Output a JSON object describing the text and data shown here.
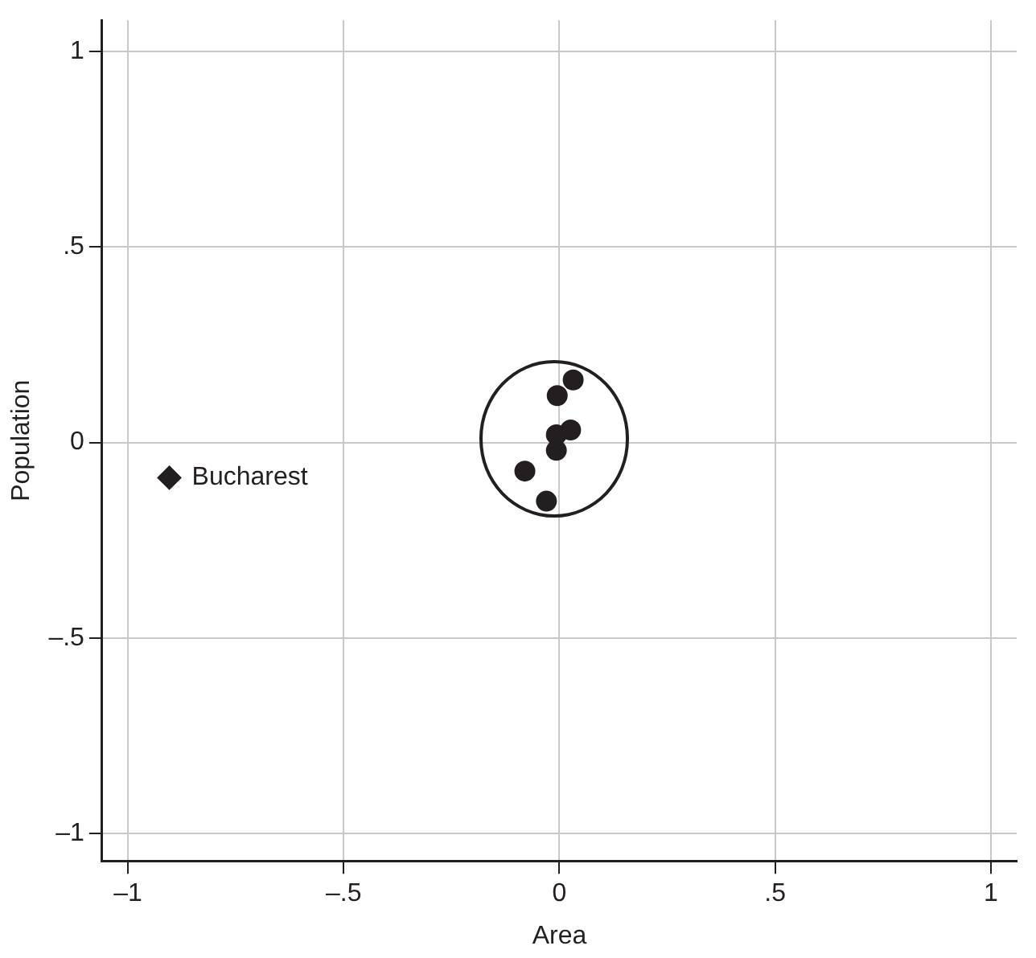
{
  "chart_data": {
    "type": "scatter",
    "xlabel": "Area",
    "ylabel": "Population",
    "series": [
      {
        "color": "#231f20",
        "marker": "circle",
        "x": [
          0.032,
          -0.005,
          0.026,
          -0.007,
          -0.007,
          -0.08,
          -0.03
        ],
        "values": [
          0.16,
          0.12,
          0.032,
          0.02,
          -0.02,
          -0.073,
          -0.15
        ]
      },
      {
        "color": "#231f20",
        "marker": "diamond",
        "x": [
          -0.904
        ],
        "values": [
          -0.09
        ]
      }
    ],
    "annotations": [
      {
        "text": "Bucharest",
        "x": -0.904,
        "y": -0.09
      }
    ],
    "xlim": [
      -1.06,
      1.06
    ],
    "ylim": [
      -1.07,
      1.08
    ],
    "xticks": [
      {
        "value": -1,
        "label": "–1"
      },
      {
        "value": -0.5,
        "label": "–.5"
      },
      0,
      {
        "value": 0.5,
        "label": ".5"
      },
      1
    ],
    "yticks": [
      {
        "value": -1,
        "label": "–1"
      },
      {
        "value": -0.5,
        "label": "–.5"
      },
      0,
      {
        "value": 0.5,
        "label": ".5"
      },
      1
    ],
    "grid": true,
    "legend": false
  }
}
